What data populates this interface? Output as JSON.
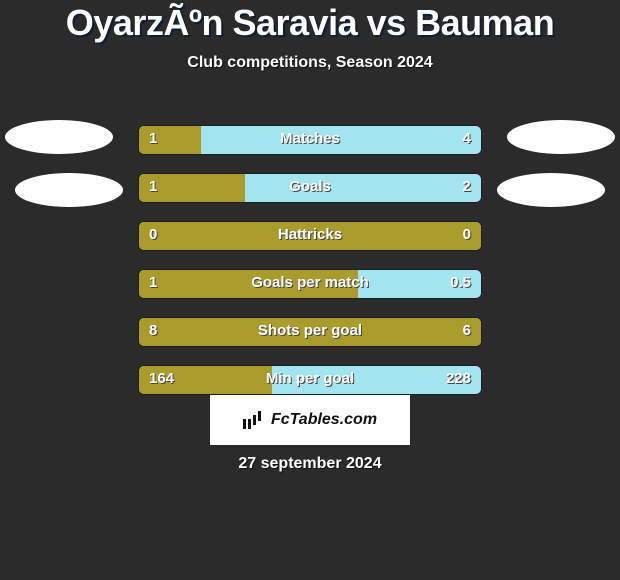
{
  "title": "OyarzÃºn Saravia vs Bauman",
  "subtitle": "Club competitions, Season 2024",
  "date": "27 september 2024",
  "logo_text": "FcTables.com",
  "colors": {
    "left": "#aa9b2d",
    "right": "#a2e4ef",
    "background": "#2b2b2b",
    "text": "#ffffff"
  },
  "badges": {
    "left1": true,
    "right1": true,
    "left2": true,
    "right2": true
  },
  "rows": [
    {
      "label": "Matches",
      "left": "1",
      "right": "4",
      "left_pct": 18
    },
    {
      "label": "Goals",
      "left": "1",
      "right": "2",
      "left_pct": 31
    },
    {
      "label": "Hattricks",
      "left": "0",
      "right": "0",
      "left_pct": 100
    },
    {
      "label": "Goals per match",
      "left": "1",
      "right": "0.5",
      "left_pct": 64
    },
    {
      "label": "Shots per goal",
      "left": "8",
      "right": "6",
      "left_pct": 100
    },
    {
      "label": "Min per goal",
      "left": "164",
      "right": "228",
      "left_pct": 39
    }
  ]
}
